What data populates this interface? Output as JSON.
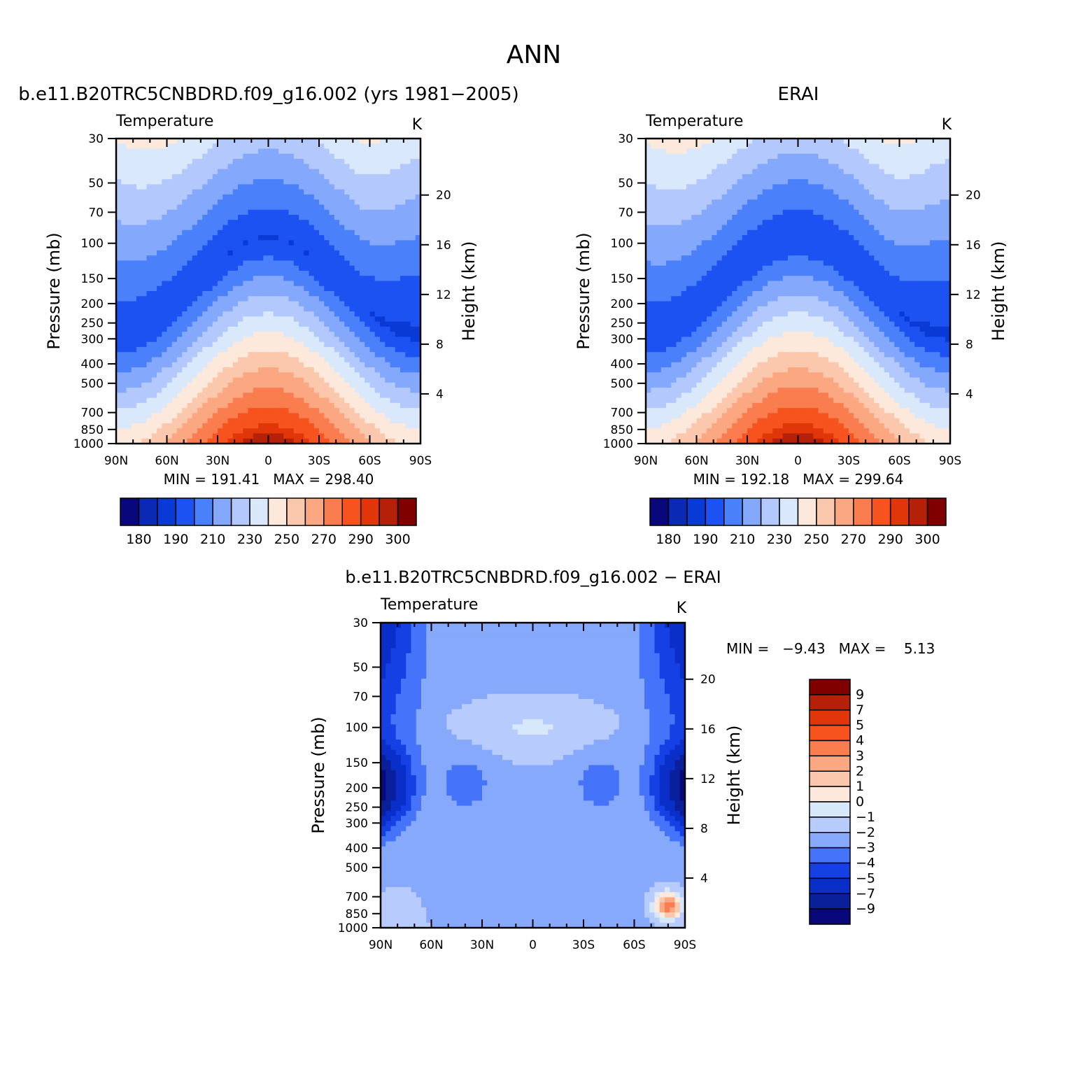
{
  "figure_title": "ANN",
  "palettes": {
    "abs": [
      "#08087a",
      "#0a2ab5",
      "#0a3ad6",
      "#1c52f2",
      "#4a80fa",
      "#84a8fb",
      "#b3c8fc",
      "#d9e8fb",
      "#fde9dc",
      "#fcc8ad",
      "#fba781",
      "#fa7d4f",
      "#f6531e",
      "#e0360a",
      "#b52008",
      "#800000"
    ],
    "diff": [
      "#08087a",
      "#0a1f9a",
      "#0a2fc9",
      "#1440e4",
      "#4574fa",
      "#86a9fb",
      "#b7ccfc",
      "#d8e8fb",
      "#fde9dc",
      "#fcc8ad",
      "#fba781",
      "#fa7d4f",
      "#f6531e",
      "#e0360a",
      "#b52008",
      "#800000"
    ]
  },
  "chart_data": [
    {
      "id": "model",
      "type": "contour",
      "title": "b.e11.B20TRC5CNBDRD.f09_g16.002 (yrs 1981−2005)",
      "variable": "Temperature",
      "units": "K",
      "xlabel": "",
      "ylabel": "Pressure (mb)",
      "y2label": "Height (km)",
      "x_ticks": [
        "90N",
        "60N",
        "30N",
        "0",
        "30S",
        "60S",
        "90S"
      ],
      "x_values": [
        90,
        60,
        30,
        0,
        -30,
        -60,
        -90
      ],
      "y_ticks": [
        30,
        50,
        70,
        100,
        150,
        200,
        250,
        300,
        400,
        500,
        700,
        850,
        1000
      ],
      "y2_ticks": [
        20,
        16,
        12,
        8,
        4
      ],
      "ylim": [
        30,
        1000
      ],
      "stats": {
        "min": "191.41",
        "max": "298.40",
        "text": "MIN = 191.41   MAX = 298.40"
      },
      "colorbar": {
        "orientation": "horizontal",
        "labels": [
          "180",
          "190",
          "210",
          "230",
          "250",
          "270",
          "290",
          "300"
        ],
        "levels": [
          180,
          185,
          190,
          200,
          210,
          220,
          230,
          240,
          250,
          260,
          270,
          280,
          290,
          295,
          300
        ]
      },
      "field": {
        "description": "tropical tropopause minimum near 100 mb over the equator, warmest near surface at the equator",
        "surface_max": 298.4,
        "tropopause_min": 191.41
      }
    },
    {
      "id": "obs",
      "type": "contour",
      "title": "ERAI",
      "variable": "Temperature",
      "units": "K",
      "xlabel": "",
      "ylabel": "Pressure (mb)",
      "y2label": "Height (km)",
      "x_ticks": [
        "90N",
        "60N",
        "30N",
        "0",
        "30S",
        "60S",
        "90S"
      ],
      "x_values": [
        90,
        60,
        30,
        0,
        -30,
        -60,
        -90
      ],
      "y_ticks": [
        30,
        50,
        70,
        100,
        150,
        200,
        250,
        300,
        400,
        500,
        700,
        850,
        1000
      ],
      "y2_ticks": [
        20,
        16,
        12,
        8,
        4
      ],
      "ylim": [
        30,
        1000
      ],
      "stats": {
        "min": "192.18",
        "max": "299.64",
        "text": "MIN = 192.18   MAX = 299.64"
      },
      "colorbar": {
        "orientation": "horizontal",
        "labels": [
          "180",
          "190",
          "210",
          "230",
          "250",
          "270",
          "290",
          "300"
        ],
        "levels": [
          180,
          185,
          190,
          200,
          210,
          220,
          230,
          240,
          250,
          260,
          270,
          280,
          290,
          295,
          300
        ]
      },
      "field": {
        "surface_max": 299.64,
        "tropopause_min": 192.18
      }
    },
    {
      "id": "diff",
      "type": "contour",
      "title": "b.e11.B20TRC5CNBDRD.f09_g16.002 − ERAI",
      "variable": "Temperature",
      "units": "K",
      "xlabel": "",
      "ylabel": "Pressure (mb)",
      "y2label": "Height (km)",
      "x_ticks": [
        "90N",
        "60N",
        "30N",
        "0",
        "30S",
        "60S",
        "90S"
      ],
      "x_values": [
        90,
        60,
        30,
        0,
        -30,
        -60,
        -90
      ],
      "y_ticks": [
        30,
        50,
        70,
        100,
        150,
        200,
        250,
        300,
        400,
        500,
        700,
        850,
        1000
      ],
      "y2_ticks": [
        20,
        16,
        12,
        8,
        4
      ],
      "ylim": [
        30,
        1000
      ],
      "stats": {
        "min": "−9.43",
        "max": "5.13",
        "text": "MIN =   −9.43   MAX =    5.13"
      },
      "colorbar": {
        "orientation": "vertical",
        "labels": [
          "9",
          "7",
          "5",
          "4",
          "3",
          "2",
          "1",
          "0",
          "−1",
          "−2",
          "−3",
          "−4",
          "−5",
          "−7",
          "−9"
        ],
        "levels": [
          9,
          7,
          5,
          4,
          3,
          2,
          1,
          0,
          -1,
          -2,
          -3,
          -4,
          -5,
          -7,
          -9
        ]
      },
      "field": {
        "description": "cold bias at high latitudes near 200 mb, small warm bias near 80S surface",
        "min": -9.43,
        "max": 5.13
      }
    }
  ]
}
